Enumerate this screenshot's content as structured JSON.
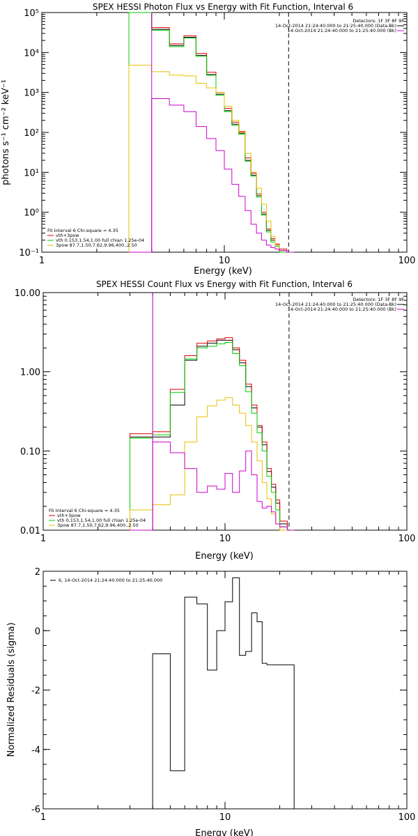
{
  "colors": {
    "total": "#000000",
    "vth_3pow": "#dd0000",
    "vth": "#00cc00",
    "pow": "#e6c000",
    "bk": "#cc00cc"
  },
  "chart_data": [
    {
      "type": "line",
      "title": "SPEX HESSI Photon Flux vs Energy with Fit Function, Interval 6",
      "xlabel": "Energy (keV)",
      "ylabel": "photons s⁻¹ cm⁻² keV⁻¹",
      "xscale": "log",
      "yscale": "log",
      "xlim": [
        1,
        100
      ],
      "ylim": [
        0.1,
        100000
      ],
      "xticks": [
        1,
        10,
        100
      ],
      "xtick_labels": [
        "1",
        "10",
        "100"
      ],
      "yticks": [
        0.1,
        1,
        10,
        100,
        1000,
        10000,
        100000
      ],
      "ytick_labels": [
        "10⁻¹",
        "10⁰",
        "10¹",
        "10²",
        "10³",
        "10⁴",
        "10⁵"
      ],
      "edges": [
        3,
        4,
        5,
        6,
        7,
        8,
        9,
        10,
        11,
        12,
        13,
        14,
        15,
        16,
        17,
        18,
        19,
        20,
        22,
        24
      ],
      "vlines": [
        {
          "x": 4.0,
          "style": "solid",
          "color": "bk"
        },
        {
          "x": 22.5,
          "style": "dashed",
          "color": "total"
        }
      ],
      "series": [
        {
          "key": "total",
          "color": "#000000",
          "values": [
            100000,
            38000,
            15000,
            24000,
            8500,
            2800,
            900,
            350,
            160,
            95,
            20,
            8.5,
            2.6,
            0.9,
            0.35,
            0.2,
            0.15,
            0.11,
            0.1
          ]
        },
        {
          "key": "vth_3pow",
          "color": "#dd0000",
          "values": [
            100000,
            42000,
            16500,
            26000,
            9500,
            3200,
            1000,
            400,
            180,
            105,
            23,
            9.5,
            2.9,
            1.0,
            0.38,
            0.22,
            0.16,
            0.12,
            0.1
          ]
        },
        {
          "key": "vth",
          "color": "#00cc00",
          "values": [
            100000,
            36000,
            14000,
            23000,
            8000,
            2700,
            850,
            330,
            150,
            90,
            19,
            8,
            2.4,
            0.85,
            0.32,
            0.18,
            0.14,
            0.1,
            0.1
          ]
        },
        {
          "key": "pow",
          "color": "#e6c000",
          "values": [
            4800,
            3300,
            2700,
            2600,
            1700,
            1300,
            1000,
            450,
            200,
            100,
            30,
            10,
            4,
            1.6,
            0.6,
            0.25,
            0.15,
            0.11,
            0.1
          ]
        },
        {
          "key": "bk",
          "color": "#cc00cc",
          "values": [
            0.1,
            700,
            480,
            330,
            140,
            70,
            35,
            12,
            5,
            2.5,
            1.1,
            0.5,
            0.3,
            0.2,
            0.15,
            0.13,
            0.12,
            0.11,
            0.1
          ]
        }
      ],
      "info": {
        "detectors": "Detectors: 1F 3F 8F 9F",
        "line1": "14-Oct-2014 21:24:40.000 to 21:25:40.000 (Data-Bk)",
        "line2": "14-Oct-2014 21:24:40.000 to 21:25:40.000 (Bk)"
      },
      "legend": {
        "header": "Fit Interval 6   Chi-square = 4.35",
        "items": [
          {
            "key": "vth_3pow",
            "label": "vth+3pow"
          },
          {
            "key": "vth",
            "label": "vth 0.153,1.54,1.00  full chian 1.25e-04"
          },
          {
            "key": "pow",
            "label": "3pow 87.7,1.50,7.62,9.96,400.,2.50"
          }
        ]
      }
    },
    {
      "type": "line",
      "title": "SPEX HESSI Count Flux vs Energy with Fit Function, Interval 6",
      "xlabel": "Energy (keV)",
      "ylabel": "",
      "xscale": "log",
      "yscale": "log",
      "xlim": [
        1,
        100
      ],
      "ylim": [
        0.01,
        10
      ],
      "xticks": [
        1,
        10,
        100
      ],
      "xtick_labels": [
        "1",
        "10",
        "100"
      ],
      "yticks": [
        0.01,
        0.1,
        1,
        10
      ],
      "ytick_labels": [
        "0.01",
        "0.10",
        "1.00",
        "10.00"
      ],
      "edges": [
        3,
        4,
        5,
        6,
        7,
        8,
        9,
        10,
        11,
        12,
        13,
        14,
        15,
        16,
        17,
        18,
        19,
        20,
        22,
        24
      ],
      "vlines": [
        {
          "x": 4.0,
          "style": "dotted",
          "color": "total"
        },
        {
          "x": 4.0,
          "style": "solid",
          "color": "bk"
        },
        {
          "x": 22.5,
          "style": "dashed",
          "color": "total"
        }
      ],
      "series": [
        {
          "key": "total",
          "color": "#000000",
          "values": [
            0.15,
            0.15,
            0.38,
            1.4,
            2.1,
            2.3,
            2.5,
            2.5,
            1.9,
            1.3,
            0.65,
            0.35,
            0.2,
            0.12,
            0.055,
            0.035,
            0.022,
            0.012,
            0.01
          ]
        },
        {
          "key": "vth_3pow",
          "color": "#dd0000",
          "values": [
            0.165,
            0.175,
            0.6,
            1.6,
            2.3,
            2.45,
            2.6,
            2.7,
            2.0,
            1.4,
            0.7,
            0.38,
            0.21,
            0.13,
            0.06,
            0.038,
            0.024,
            0.013,
            0.01
          ]
        },
        {
          "key": "vth",
          "color": "#00cc00",
          "values": [
            0.145,
            0.16,
            0.55,
            1.45,
            2.0,
            2.1,
            2.25,
            2.35,
            1.7,
            1.2,
            0.56,
            0.3,
            0.17,
            0.1,
            0.048,
            0.03,
            0.018,
            0.011,
            0.01
          ]
        },
        {
          "key": "pow",
          "color": "#e6c000",
          "values": [
            0.018,
            0.021,
            0.028,
            0.13,
            0.27,
            0.37,
            0.44,
            0.47,
            0.38,
            0.3,
            0.21,
            0.13,
            0.075,
            0.04,
            0.025,
            0.016,
            0.012,
            0.01,
            0.01
          ]
        },
        {
          "key": "bk",
          "color": "#cc00cc",
          "values": [
            0.01,
            0.13,
            0.095,
            0.06,
            0.03,
            0.036,
            0.033,
            0.052,
            0.03,
            0.056,
            0.1,
            0.05,
            0.023,
            0.019,
            0.02,
            0.017,
            0.012,
            0.011,
            0.01
          ]
        }
      ],
      "info": {
        "detectors": "Detectors: 1F 3F 8F 9F",
        "line1": "14-Oct-2014 21:24:40.000 to 21:25:40.000 (Data-Bk)",
        "line2": "14-Oct-2014 21:24:40.000 to 21:25:40.000 (Bk)"
      },
      "legend": {
        "header": "Fit Interval 6   Chi-square = 4.35",
        "items": [
          {
            "key": "vth_3pow",
            "label": "vth+3pow"
          },
          {
            "key": "vth",
            "label": "vth 0.153,1.54,1.00  full chian 1.25e-04"
          },
          {
            "key": "pow",
            "label": "3pow 87.7,1.50,7.62,9.96,400.,2.50"
          }
        ]
      }
    },
    {
      "type": "line",
      "title": "",
      "xlabel": "Energy (keV)",
      "ylabel": "Normalized Residuals (sigma)",
      "xscale": "log",
      "yscale": "linear",
      "xlim": [
        1,
        100
      ],
      "ylim": [
        -6,
        2
      ],
      "xticks": [
        1,
        10,
        100
      ],
      "xtick_labels": [
        "1",
        "10",
        "100"
      ],
      "yticks": [
        -6,
        -4,
        -2,
        0,
        2
      ],
      "ytick_labels": [
        "-6",
        "-4",
        "-2",
        "0",
        "2"
      ],
      "edges": [
        4,
        5,
        6,
        7,
        8,
        9,
        10,
        11,
        12,
        13,
        14,
        15,
        16,
        17,
        18,
        19,
        20,
        22,
        24
      ],
      "series": [
        {
          "key": "total",
          "color": "#000000",
          "values": [
            -0.78,
            -4.72,
            1.13,
            0.9,
            -1.33,
            0.0,
            0.97,
            1.78,
            -0.83,
            -0.7,
            0.6,
            0.3,
            -1.1,
            -1.15,
            -1.15,
            -1.15,
            -1.15,
            -1.15
          ]
        }
      ],
      "legend": {
        "header": "",
        "items": [
          {
            "key": "total",
            "label": "6, 14-Oct-2014 21:24:40.000 to 21:25:40.000"
          }
        ]
      }
    }
  ]
}
